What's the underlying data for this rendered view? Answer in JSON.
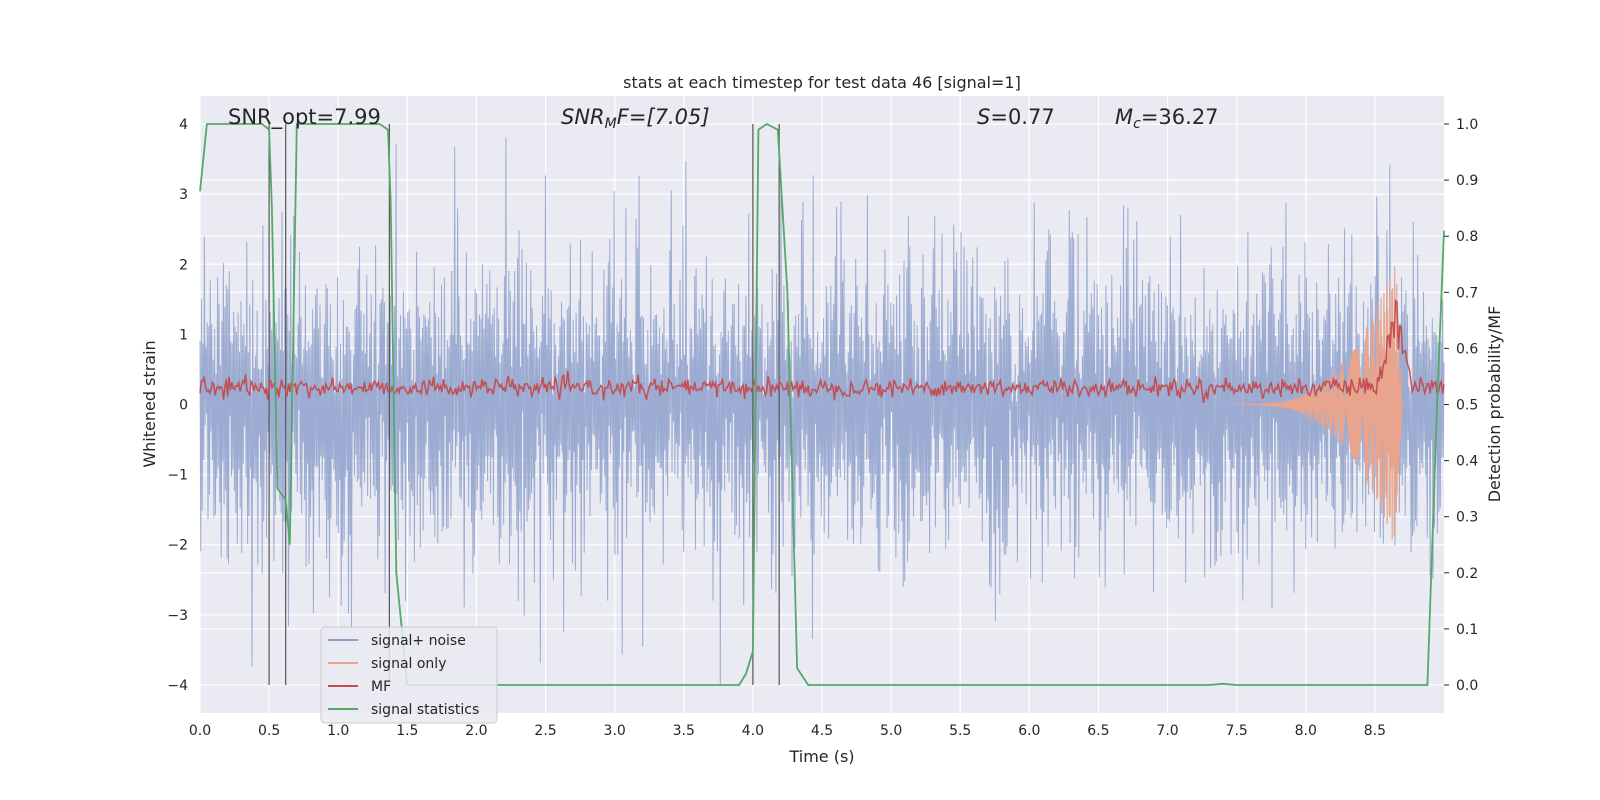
{
  "chart_data": {
    "type": "line",
    "title": "stats at each timestep for test data 46 [signal=1]",
    "xlabel": "Time (s)",
    "ylabel_left": "Whitened strain",
    "ylabel_right": "Detection probability/MF",
    "xlim": [
      0.0,
      9.0
    ],
    "ylim_left": [
      -4.4,
      4.4
    ],
    "ylim_right": [
      -0.05,
      1.05
    ],
    "x_ticks": [
      "0.0",
      "0.5",
      "1.0",
      "1.5",
      "2.0",
      "2.5",
      "3.0",
      "3.5",
      "4.0",
      "4.5",
      "5.0",
      "5.5",
      "6.0",
      "6.5",
      "7.0",
      "7.5",
      "8.0",
      "8.5"
    ],
    "x_tick_values": [
      0.0,
      0.5,
      1.0,
      1.5,
      2.0,
      2.5,
      3.0,
      3.5,
      4.0,
      4.5,
      5.0,
      5.5,
      6.0,
      6.5,
      7.0,
      7.5,
      8.0,
      8.5
    ],
    "y_left_ticks": [
      "4",
      "3",
      "2",
      "1",
      "0",
      "−1",
      "−2",
      "−3",
      "−4"
    ],
    "y_left_tick_values": [
      4,
      3,
      2,
      1,
      0,
      -1,
      -2,
      -3,
      -4
    ],
    "y_right_ticks": [
      "1.0",
      "0.9",
      "0.8",
      "0.7",
      "0.6",
      "0.5",
      "0.4",
      "0.3",
      "0.2",
      "0.1",
      "0.0"
    ],
    "y_right_tick_values": [
      1.0,
      0.9,
      0.8,
      0.7,
      0.6,
      0.5,
      0.4,
      0.3,
      0.2,
      0.1,
      0.0
    ],
    "grid": true,
    "legend_position": "lower-left",
    "annotations": {
      "snr_opt": "SNR_opt=7.99",
      "snr_mf_main": "SNR",
      "snr_mf_sub": "M",
      "snr_mf_rest": "F=[7.05]",
      "s_main": "S",
      "s_rest": "=0.77",
      "mc_main": "M",
      "mc_sub": "c",
      "mc_rest": "=36.27"
    },
    "series": [
      {
        "name": "signal+ noise",
        "color": "#8da0cb",
        "axis": "left",
        "style": "noise",
        "envelope": 2.0,
        "peak": 4.0
      },
      {
        "name": "signal only",
        "color": "#e8a48c",
        "axis": "left",
        "style": "chirp",
        "start": 7.5,
        "peak_time": 8.65,
        "peak": 2.05
      },
      {
        "name": "MF",
        "color": "#c44e52",
        "axis": "right",
        "style": "mf",
        "baseline": 0.53,
        "peak": 0.7,
        "peak_time": 8.65
      },
      {
        "name": "signal statistics",
        "color": "#55a868",
        "axis": "right",
        "style": "line",
        "x": [
          0.0,
          0.05,
          0.45,
          0.5,
          0.52,
          0.56,
          0.62,
          0.65,
          0.7,
          0.8,
          1.3,
          1.36,
          1.38,
          1.42,
          1.5,
          3.9,
          3.95,
          4.0,
          4.04,
          4.1,
          4.18,
          4.25,
          4.32,
          4.4,
          7.3,
          7.4,
          7.5,
          8.88,
          8.95,
          9.0
        ],
        "y": [
          0.88,
          1.0,
          1.0,
          0.99,
          0.85,
          0.35,
          0.33,
          0.25,
          1.0,
          1.0,
          1.0,
          0.99,
          0.86,
          0.2,
          0.0,
          0.0,
          0.02,
          0.06,
          0.99,
          1.0,
          0.99,
          0.7,
          0.03,
          0.0,
          0.0,
          0.002,
          0.0,
          0.0,
          0.5,
          0.81
        ]
      }
    ],
    "vertical_lines": [
      0.5,
      0.62,
      1.37,
      4.0,
      4.19
    ]
  }
}
